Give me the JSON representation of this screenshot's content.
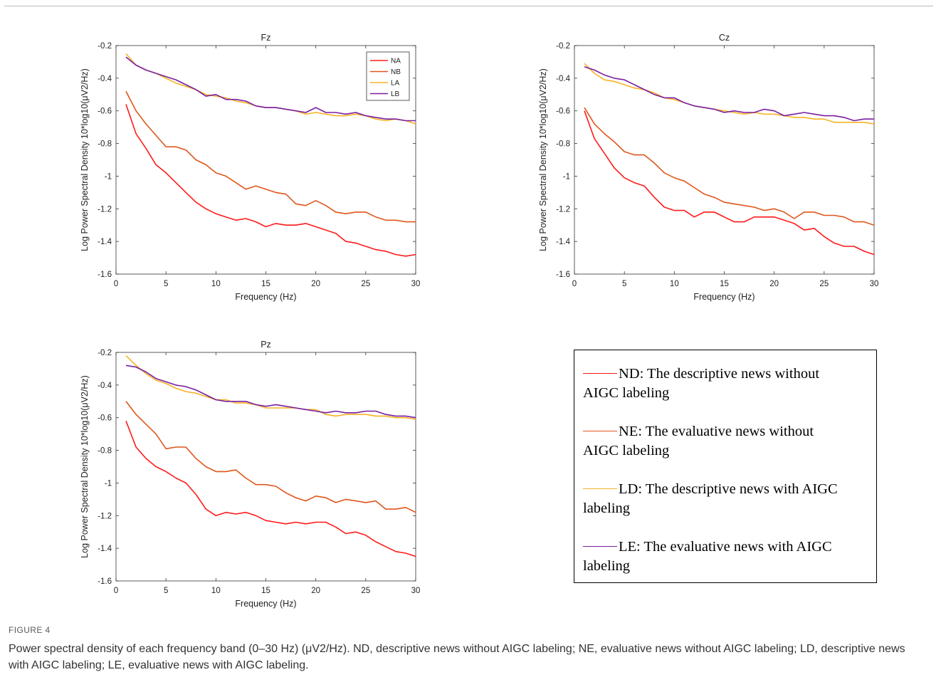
{
  "figure": {
    "label": "FIGURE 4",
    "caption": "Power spectral density of each frequency band (0–30 Hz) (μV2/Hz). ND, descriptive news without AIGC labeling; NE, evaluative news without AIGC labeling; LD, descriptive news with AIGC labeling; LE, evaluative news with AIGC labeling."
  },
  "big_legend": {
    "entries": [
      {
        "line1": "ND: The descriptive news without",
        "line2": "AIGC labeling",
        "color": "#ff1a1a"
      },
      {
        "line1": "NE: The evaluative news without",
        "line2": "AIGC labeling",
        "color": "#e0561b"
      },
      {
        "line1": "LD: The descriptive news with AIGC",
        "line2": "labeling",
        "color": "#f5b324"
      },
      {
        "line1": "LE: The evaluative news with AIGC",
        "line2": "labeling",
        "color": "#7a1fa2"
      }
    ]
  },
  "chart_data": [
    {
      "type": "line",
      "title": "Fz",
      "xlabel": "Frequency (Hz)",
      "ylabel": "Log Power Spectral Density 10*log10(μV2/Hz)",
      "xlim": [
        0,
        30
      ],
      "ylim": [
        -1.6,
        -0.2
      ],
      "xticks": [
        0,
        5,
        10,
        15,
        20,
        25,
        30
      ],
      "yticks": [
        -1.6,
        -1.4,
        -1.2,
        -1,
        -0.8,
        -0.6,
        -0.4,
        -0.2
      ],
      "grid": false,
      "legend": "top-right",
      "x": [
        1,
        2,
        3,
        4,
        5,
        6,
        7,
        8,
        9,
        10,
        11,
        12,
        13,
        14,
        15,
        16,
        17,
        18,
        19,
        20,
        21,
        22,
        23,
        24,
        25,
        26,
        27,
        28,
        29,
        30
      ],
      "series": [
        {
          "name": "NA",
          "color": "#ff1a1a",
          "values": [
            -0.56,
            -0.74,
            -0.83,
            -0.93,
            -0.98,
            -1.04,
            -1.1,
            -1.16,
            -1.2,
            -1.23,
            -1.25,
            -1.27,
            -1.26,
            -1.28,
            -1.31,
            -1.29,
            -1.3,
            -1.3,
            -1.29,
            -1.31,
            -1.33,
            -1.35,
            -1.4,
            -1.41,
            -1.43,
            -1.45,
            -1.46,
            -1.48,
            -1.49,
            -1.48
          ]
        },
        {
          "name": "NB",
          "color": "#e0561b",
          "values": [
            -0.48,
            -0.6,
            -0.68,
            -0.75,
            -0.82,
            -0.82,
            -0.84,
            -0.9,
            -0.93,
            -0.98,
            -1.0,
            -1.04,
            -1.08,
            -1.06,
            -1.08,
            -1.1,
            -1.11,
            -1.17,
            -1.18,
            -1.15,
            -1.18,
            -1.22,
            -1.23,
            -1.22,
            -1.22,
            -1.25,
            -1.27,
            -1.27,
            -1.28,
            -1.28
          ]
        },
        {
          "name": "LA",
          "color": "#f5b324",
          "values": [
            -0.25,
            -0.32,
            -0.35,
            -0.37,
            -0.4,
            -0.43,
            -0.45,
            -0.47,
            -0.5,
            -0.51,
            -0.52,
            -0.54,
            -0.55,
            -0.57,
            -0.58,
            -0.58,
            -0.59,
            -0.6,
            -0.62,
            -0.61,
            -0.62,
            -0.63,
            -0.63,
            -0.62,
            -0.63,
            -0.65,
            -0.66,
            -0.65,
            -0.66,
            -0.68
          ]
        },
        {
          "name": "LB",
          "color": "#7a1fa2",
          "values": [
            -0.27,
            -0.32,
            -0.35,
            -0.37,
            -0.39,
            -0.41,
            -0.44,
            -0.47,
            -0.51,
            -0.5,
            -0.53,
            -0.53,
            -0.54,
            -0.57,
            -0.58,
            -0.58,
            -0.59,
            -0.6,
            -0.61,
            -0.58,
            -0.61,
            -0.61,
            -0.62,
            -0.61,
            -0.63,
            -0.64,
            -0.65,
            -0.65,
            -0.66,
            -0.66
          ]
        }
      ]
    },
    {
      "type": "line",
      "title": "Cz",
      "xlabel": "Frequency (Hz)",
      "ylabel": "Log Power Spectral Density 10*log10(μV2/Hz)",
      "xlim": [
        0,
        30
      ],
      "ylim": [
        -1.6,
        -0.2
      ],
      "xticks": [
        0,
        5,
        10,
        15,
        20,
        25,
        30
      ],
      "yticks": [
        -1.6,
        -1.4,
        -1.2,
        -1,
        -0.8,
        -0.6,
        -0.4,
        -0.2
      ],
      "grid": false,
      "x": [
        1,
        2,
        3,
        4,
        5,
        6,
        7,
        8,
        9,
        10,
        11,
        12,
        13,
        14,
        15,
        16,
        17,
        18,
        19,
        20,
        21,
        22,
        23,
        24,
        25,
        26,
        27,
        28,
        29,
        30
      ],
      "series": [
        {
          "color": "#ff1a1a",
          "values": [
            -0.6,
            -0.77,
            -0.86,
            -0.95,
            -1.01,
            -1.04,
            -1.06,
            -1.13,
            -1.19,
            -1.21,
            -1.21,
            -1.25,
            -1.22,
            -1.22,
            -1.25,
            -1.28,
            -1.28,
            -1.25,
            -1.25,
            -1.25,
            -1.27,
            -1.29,
            -1.33,
            -1.32,
            -1.37,
            -1.41,
            -1.43,
            -1.43,
            -1.46,
            -1.48
          ]
        },
        {
          "color": "#e0561b",
          "values": [
            -0.58,
            -0.68,
            -0.74,
            -0.79,
            -0.85,
            -0.87,
            -0.87,
            -0.92,
            -0.98,
            -1.01,
            -1.03,
            -1.07,
            -1.11,
            -1.13,
            -1.16,
            -1.17,
            -1.18,
            -1.19,
            -1.21,
            -1.2,
            -1.22,
            -1.26,
            -1.22,
            -1.22,
            -1.24,
            -1.24,
            -1.25,
            -1.28,
            -1.28,
            -1.3
          ]
        },
        {
          "color": "#f5b324",
          "values": [
            -0.31,
            -0.37,
            -0.41,
            -0.42,
            -0.44,
            -0.46,
            -0.47,
            -0.49,
            -0.52,
            -0.53,
            -0.55,
            -0.57,
            -0.58,
            -0.59,
            -0.6,
            -0.61,
            -0.62,
            -0.61,
            -0.62,
            -0.62,
            -0.63,
            -0.64,
            -0.64,
            -0.65,
            -0.65,
            -0.67,
            -0.67,
            -0.67,
            -0.67,
            -0.68
          ]
        },
        {
          "color": "#7a1fa2",
          "values": [
            -0.33,
            -0.35,
            -0.38,
            -0.4,
            -0.41,
            -0.44,
            -0.47,
            -0.5,
            -0.52,
            -0.52,
            -0.55,
            -0.57,
            -0.58,
            -0.59,
            -0.61,
            -0.6,
            -0.61,
            -0.61,
            -0.59,
            -0.6,
            -0.63,
            -0.62,
            -0.61,
            -0.62,
            -0.63,
            -0.63,
            -0.64,
            -0.66,
            -0.65,
            -0.65
          ]
        }
      ]
    },
    {
      "type": "line",
      "title": "Pz",
      "xlabel": "Frequency (Hz)",
      "ylabel": "Log Power Spectral Density 10*log10(μV2/Hz)",
      "xlim": [
        0,
        30
      ],
      "ylim": [
        -1.6,
        -0.2
      ],
      "xticks": [
        0,
        5,
        10,
        15,
        20,
        25,
        30
      ],
      "yticks": [
        -1.6,
        -1.4,
        -1.2,
        -1,
        -0.8,
        -0.6,
        -0.4,
        -0.2
      ],
      "grid": false,
      "x": [
        1,
        2,
        3,
        4,
        5,
        6,
        7,
        8,
        9,
        10,
        11,
        12,
        13,
        14,
        15,
        16,
        17,
        18,
        19,
        20,
        21,
        22,
        23,
        24,
        25,
        26,
        27,
        28,
        29,
        30
      ],
      "series": [
        {
          "color": "#ff1a1a",
          "values": [
            -0.62,
            -0.78,
            -0.85,
            -0.9,
            -0.93,
            -0.97,
            -1.0,
            -1.07,
            -1.16,
            -1.2,
            -1.18,
            -1.19,
            -1.18,
            -1.2,
            -1.23,
            -1.24,
            -1.25,
            -1.24,
            -1.25,
            -1.24,
            -1.24,
            -1.27,
            -1.31,
            -1.3,
            -1.32,
            -1.36,
            -1.39,
            -1.42,
            -1.43,
            -1.45
          ]
        },
        {
          "color": "#e0561b",
          "values": [
            -0.5,
            -0.58,
            -0.64,
            -0.7,
            -0.79,
            -0.78,
            -0.78,
            -0.85,
            -0.9,
            -0.93,
            -0.93,
            -0.92,
            -0.97,
            -1.01,
            -1.01,
            -1.02,
            -1.06,
            -1.09,
            -1.11,
            -1.08,
            -1.09,
            -1.12,
            -1.1,
            -1.11,
            -1.12,
            -1.11,
            -1.16,
            -1.16,
            -1.15,
            -1.18
          ]
        },
        {
          "color": "#f5b324",
          "values": [
            -0.22,
            -0.28,
            -0.33,
            -0.37,
            -0.39,
            -0.42,
            -0.44,
            -0.45,
            -0.47,
            -0.49,
            -0.49,
            -0.51,
            -0.51,
            -0.52,
            -0.54,
            -0.54,
            -0.54,
            -0.54,
            -0.55,
            -0.55,
            -0.58,
            -0.59,
            -0.58,
            -0.58,
            -0.58,
            -0.59,
            -0.59,
            -0.6,
            -0.6,
            -0.61
          ]
        },
        {
          "color": "#7a1fa2",
          "values": [
            -0.28,
            -0.29,
            -0.32,
            -0.36,
            -0.38,
            -0.4,
            -0.41,
            -0.43,
            -0.46,
            -0.49,
            -0.5,
            -0.5,
            -0.5,
            -0.52,
            -0.53,
            -0.52,
            -0.53,
            -0.54,
            -0.55,
            -0.56,
            -0.57,
            -0.56,
            -0.57,
            -0.57,
            -0.56,
            -0.56,
            -0.58,
            -0.59,
            -0.59,
            -0.6
          ]
        }
      ]
    }
  ]
}
